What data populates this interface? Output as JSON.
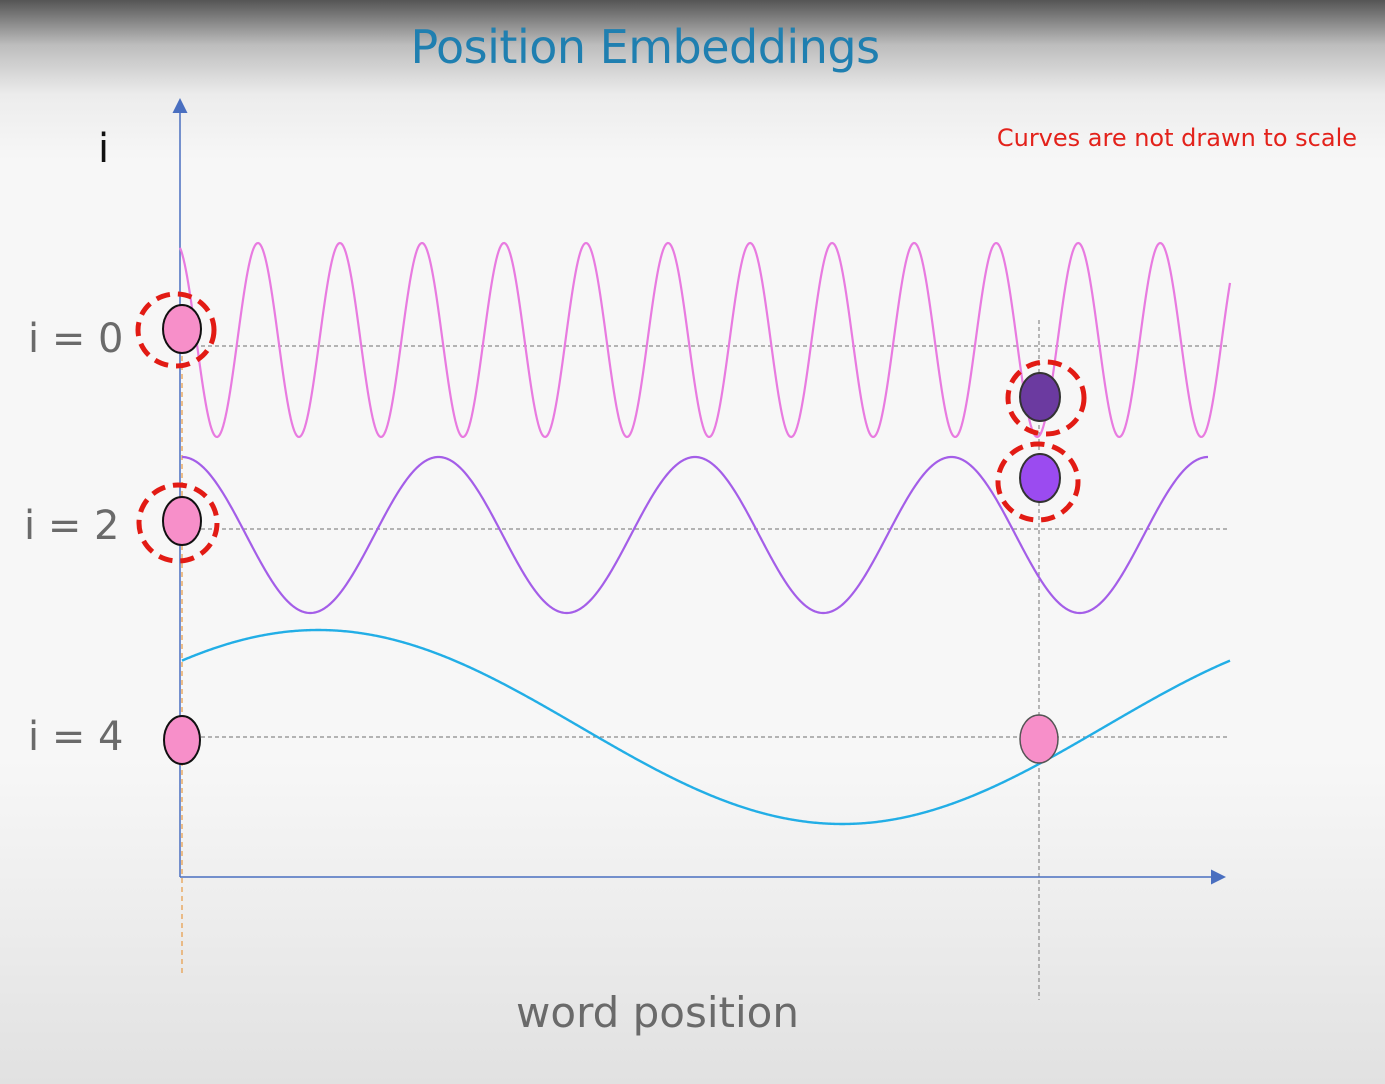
{
  "title": "Position Embeddings",
  "note": "Curves are not drawn to scale",
  "y_axis_label": "i",
  "x_axis_label": "word position",
  "rows": [
    {
      "label": "i = 0",
      "i": 0
    },
    {
      "label": "i = 2",
      "i": 2
    },
    {
      "label": "i = 4",
      "i": 4
    }
  ],
  "colors": {
    "title": "#1f7fb0",
    "note": "#e3221b",
    "axis": "#4a6fc0",
    "curve_i0": "#e87be0",
    "curve_i2": "#a45ee8",
    "curve_i4": "#22aee6",
    "marker_pink": "#f78fc9",
    "marker_dark_purple": "#6b3aa0",
    "marker_purple": "#9b4bf0",
    "highlight_ring": "#e21b14"
  },
  "curves": [
    {
      "name": "i0",
      "row": 0,
      "cycles": 12.8,
      "phase": 0.3
    },
    {
      "name": "i2",
      "row": 2,
      "cycles": 4,
      "phase": 0.25
    },
    {
      "name": "i4",
      "row": 4,
      "cycles": 1,
      "phase": 0.12
    }
  ],
  "markers": [
    {
      "name": "start-marker-i0",
      "color": "marker_pink",
      "highlighted": true
    },
    {
      "name": "start-marker-i2",
      "color": "marker_pink",
      "highlighted": true
    },
    {
      "name": "start-marker-i4",
      "color": "marker_pink",
      "highlighted": false
    },
    {
      "name": "later-marker-i0",
      "color": "marker_dark_purple",
      "highlighted": true
    },
    {
      "name": "later-marker-i2",
      "color": "marker_purple",
      "highlighted": true
    },
    {
      "name": "later-marker-i4",
      "color": "marker_pink",
      "highlighted": false
    }
  ]
}
